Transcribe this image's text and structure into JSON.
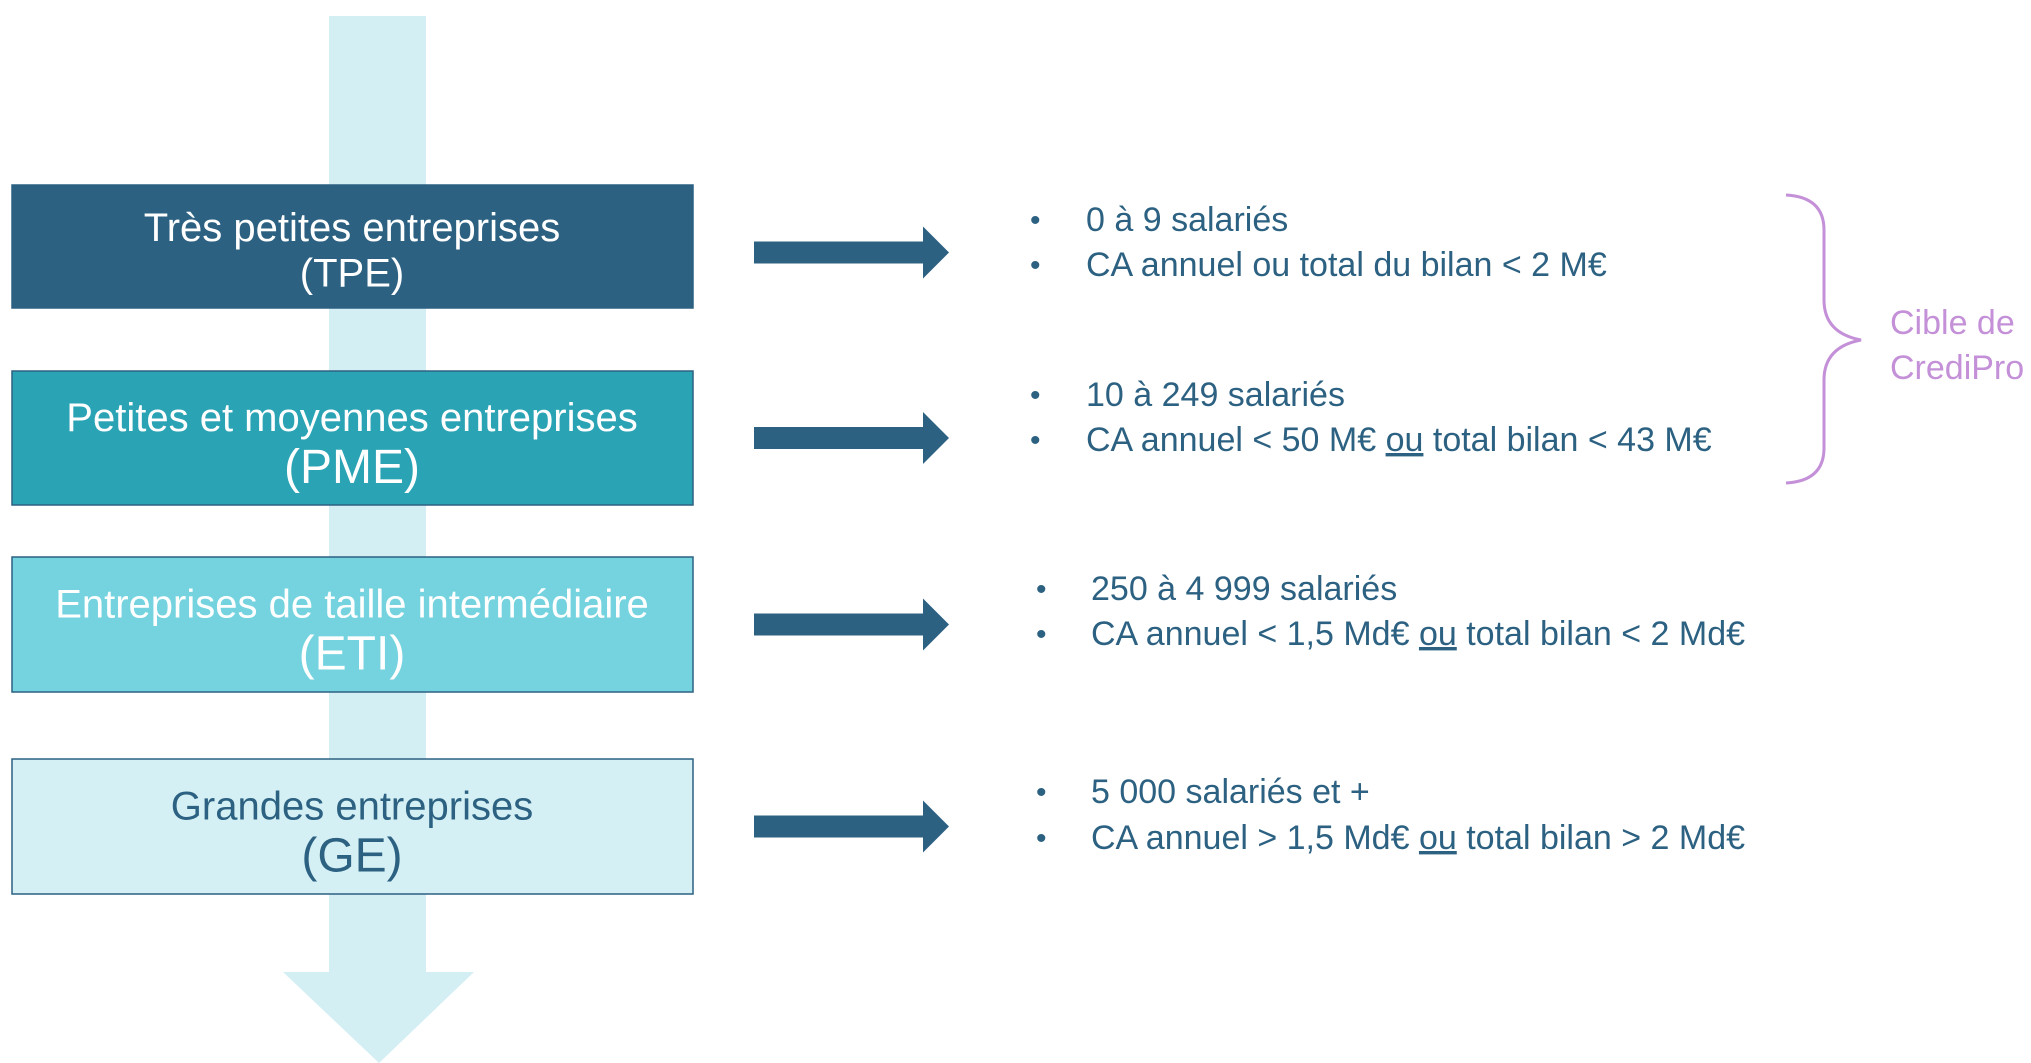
{
  "tiers": [
    {
      "name": "Très petites entreprises",
      "abbr": "(TPE)",
      "bullets": [
        "0 à 9 salariés",
        "CA annuel ou total du bilan < 2 M€"
      ]
    },
    {
      "name": "Petites et moyennes entreprises",
      "abbr": "(PME)",
      "bullets": [
        "10 à 249 salariés",
        {
          "before": "CA annuel < 50 M€ ",
          "underlined": "ou",
          "after": " total bilan < 43 M€"
        }
      ]
    },
    {
      "name": "Entreprises de taille intermédiaire",
      "abbr": "(ETI)",
      "bullets": [
        "250 à 4 999 salariés",
        {
          "before": "CA annuel < 1,5 Md€ ",
          "underlined": "ou",
          "after": " total bilan < 2 Md€"
        }
      ]
    },
    {
      "name": "Grandes entreprises",
      "abbr": "(GE)",
      "bullets": [
        " 5 000 salariés et +",
        {
          "before": "CA annuel > 1,5 Md€ ",
          "underlined": "ou",
          "after": " total bilan > 2 Md€"
        }
      ]
    }
  ],
  "bullet_symbol": "•",
  "bracket_label": [
    "Cible de",
    "CrediPro"
  ]
}
